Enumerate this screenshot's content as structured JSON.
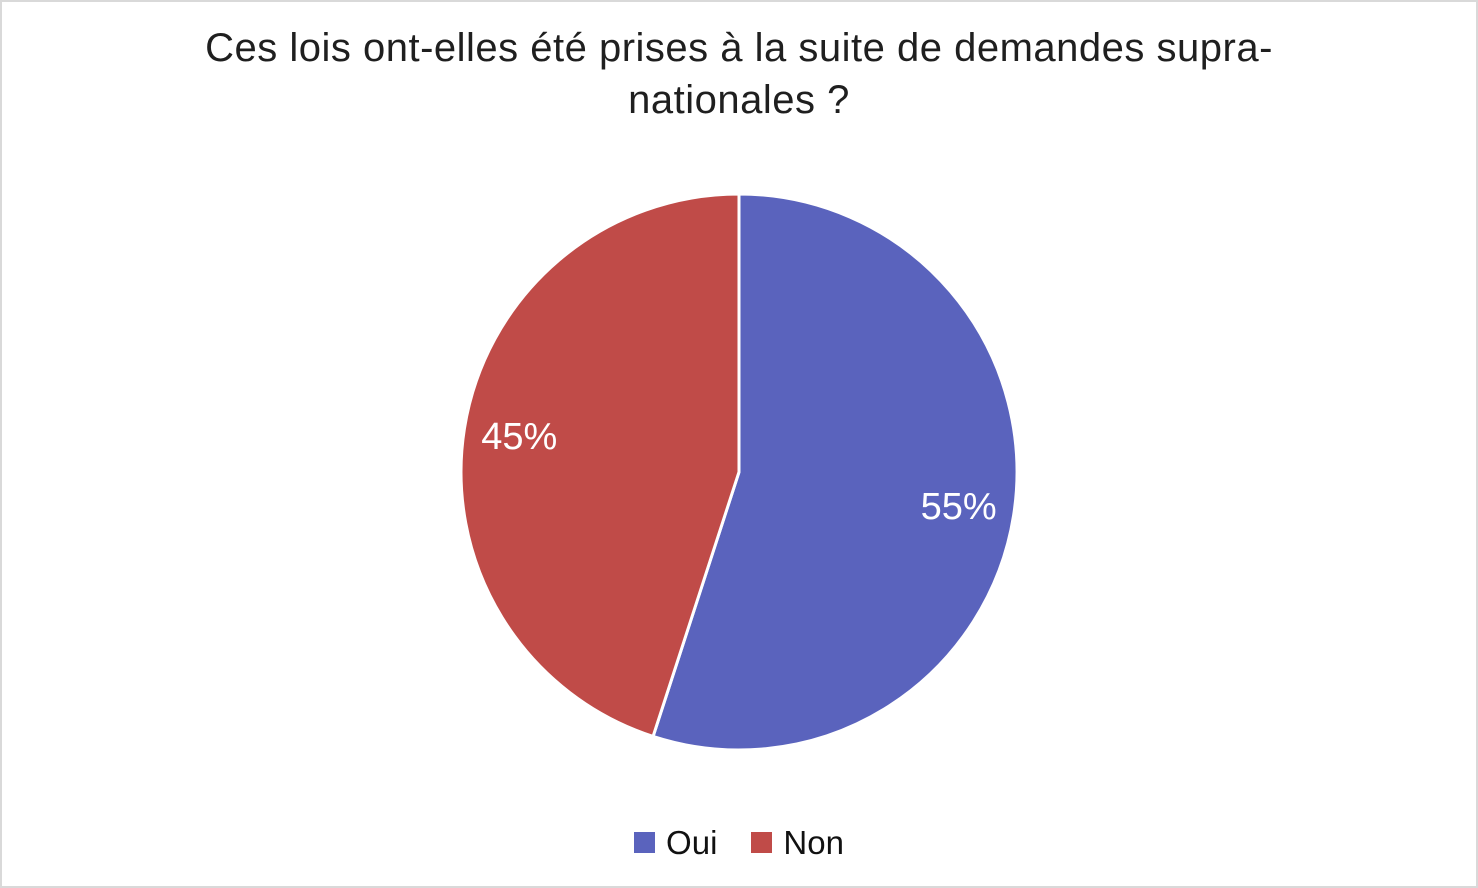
{
  "page": {
    "background_color": "#ffffff",
    "border_color": "#d9d9d9"
  },
  "chart_data": {
    "type": "pie",
    "title": "Ces lois ont-elles été prises à la suite de demandes supra-nationales ?",
    "categories": [
      "Oui",
      "Non"
    ],
    "values": [
      55,
      45
    ],
    "data_labels": [
      "55%",
      "45%"
    ],
    "slice_colors": [
      "#5a63bd",
      "#c04b48"
    ],
    "slice_border_color": "#ffffff",
    "data_label_color": "#ffffff",
    "start_angle_deg": 0,
    "direction": "clockwise",
    "legend_position": "bottom",
    "legend": {
      "items": [
        {
          "label": "Oui",
          "color": "#5a63bd"
        },
        {
          "label": "Non",
          "color": "#c04b48"
        }
      ]
    }
  }
}
